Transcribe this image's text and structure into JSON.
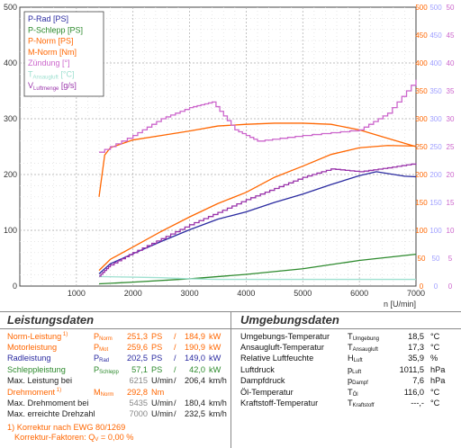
{
  "chart_data": {
    "type": "line",
    "x_axis": {
      "label": "n [U/min]",
      "ticks": [
        1000,
        2000,
        3000,
        4000,
        5000,
        6000,
        7000
      ],
      "range": [
        0,
        7000
      ]
    },
    "y_axis_left": {
      "ticks": [
        0,
        100,
        200,
        300,
        400,
        500
      ],
      "range": [
        0,
        500
      ]
    },
    "y_axis_right": [
      {
        "color": "#ff6600",
        "ticks": [
          0,
          50,
          100,
          150,
          200,
          250,
          300,
          350,
          400,
          450,
          500
        ]
      },
      {
        "color": "#a0a0ff",
        "ticks": [
          0,
          50,
          100,
          150,
          200,
          250,
          300,
          350,
          400,
          450,
          500
        ]
      },
      {
        "color": "#cc66cc",
        "ticks": [
          0,
          5,
          10,
          15,
          20,
          25,
          30,
          35,
          40,
          45,
          50
        ]
      }
    ],
    "grid": true,
    "legend_position": "top-left",
    "series": [
      {
        "name": "P-Rad [PS]",
        "legend_name": "P-Rad",
        "unit": "[PS]",
        "color": "#2a2aa0",
        "x": [
          1400,
          1600,
          2000,
          2500,
          3000,
          3500,
          4000,
          4500,
          5000,
          5500,
          6000,
          6300,
          6800,
          7000
        ],
        "y": [
          22,
          40,
          58,
          80,
          101,
          120,
          133,
          150,
          165,
          182,
          198,
          205,
          197,
          196
        ]
      },
      {
        "name": "P-Schlepp [PS]",
        "legend_name": "P-Schlepp",
        "unit": "[PS]",
        "color": "#2d8a2d",
        "x": [
          1400,
          2000,
          3000,
          4000,
          5000,
          6000,
          7000
        ],
        "y": [
          4,
          7,
          13,
          21,
          31,
          46,
          57
        ]
      },
      {
        "name": "P-Norm [PS]",
        "legend_name": "P-Norm",
        "unit": "[PS]",
        "color": "#ff6600",
        "x": [
          1400,
          1600,
          2000,
          2500,
          3000,
          3500,
          4000,
          4500,
          5000,
          5500,
          6000,
          6500,
          7000
        ],
        "y": [
          28,
          48,
          70,
          98,
          124,
          148,
          168,
          195,
          215,
          236,
          248,
          252,
          251
        ]
      },
      {
        "name": "M-Norm [Nm]",
        "legend_name": "M-Norm",
        "unit": "[Nm]",
        "color": "#ff6600",
        "x": [
          1400,
          1500,
          1600,
          2000,
          2500,
          3000,
          3500,
          4000,
          4500,
          5000,
          5500,
          6000,
          6500,
          7000
        ],
        "y": [
          160,
          235,
          248,
          262,
          270,
          278,
          287,
          290,
          292,
          292,
          290,
          280,
          265,
          250
        ]
      },
      {
        "name": "Zündung [°]",
        "legend_name": "Zündung",
        "unit": "[°]",
        "color": "#cc66cc",
        "x": [
          1400,
          2000,
          2500,
          3000,
          3400,
          3800,
          4200,
          5000,
          6000,
          6500,
          7000
        ],
        "y": [
          24,
          27,
          30,
          32,
          33,
          28,
          26,
          27,
          28,
          31,
          37
        ]
      },
      {
        "name": "TAnsaugluft [°C]",
        "legend_name": "T",
        "unit": "[°C]",
        "color": "#9fe0d0",
        "x": [
          1400,
          2000,
          2500,
          3000,
          3500,
          4000,
          4500,
          5000,
          5500,
          6000,
          6500,
          7000
        ],
        "y": [
          17,
          16,
          15,
          13,
          12,
          12,
          12,
          12,
          12,
          12,
          12,
          12
        ]
      },
      {
        "name": "VLuftmenge [g/s]",
        "legend_name": "V",
        "unit": "[g/s]",
        "color": "#9933aa",
        "x": [
          1400,
          1600,
          2000,
          2500,
          3000,
          3500,
          4000,
          4500,
          5000,
          5500,
          6000,
          6500,
          7000
        ],
        "y": [
          18,
          38,
          60,
          85,
          110,
          132,
          155,
          175,
          195,
          210,
          205,
          212,
          220
        ]
      }
    ],
    "legend_subscripts": {
      "t": "Ansaugluft",
      "v": "Luftmenge"
    }
  },
  "left_table": {
    "title": "Leistungsdaten",
    "rows": [
      {
        "label": "Norm-Leistung",
        "sup": "1)",
        "sym": "P",
        "sub": "Norm",
        "val": "251,3",
        "unit": "PS",
        "sep": "/",
        "val2": "184,9",
        "unit2": "kW",
        "color": "#ff6600"
      },
      {
        "label": "Motorleistung",
        "sup": "",
        "sym": "P",
        "sub": "Mot",
        "val": "259,6",
        "unit": "PS",
        "sep": "/",
        "val2": "190,9",
        "unit2": "kW",
        "color": "#ff6600"
      },
      {
        "label": "Radleistung",
        "sup": "",
        "sym": "P",
        "sub": "Rad",
        "val": "202,5",
        "unit": "PS",
        "sep": "/",
        "val2": "149,0",
        "unit2": "kW",
        "color": "#2a2aa0"
      },
      {
        "label": "Schleppleistung",
        "sup": "",
        "sym": "P",
        "sub": "Schlepp",
        "val": "57,1",
        "unit": "PS",
        "sep": "/",
        "val2": "42,0",
        "unit2": "kW",
        "color": "#2d8a2d"
      },
      {
        "label": "Max. Leistung bei",
        "sup": "",
        "sym": "",
        "sub": "",
        "val": "6215",
        "unit": "U/min",
        "sep": "/",
        "val2": "206,4",
        "unit2": "km/h",
        "color": "#222222",
        "valcolor": "#888888"
      }
    ],
    "rows2": [
      {
        "label": "Drehmoment",
        "sup": "1)",
        "sym": "M",
        "sub": "Norm",
        "val": "292,8",
        "unit": "Nm",
        "color": "#ff6600"
      },
      {
        "label": "Max. Drehmoment bei",
        "sup": "",
        "sym": "",
        "sub": "",
        "val": "5435",
        "unit": "U/min",
        "sep": "/",
        "val2": "180,4",
        "unit2": "km/h",
        "color": "#222222",
        "valcolor": "#888888"
      },
      {
        "label": "Max. erreichte Drehzahl",
        "sup": "",
        "sym": "",
        "sub": "",
        "val": "7000",
        "unit": "U/min",
        "sep": "/",
        "val2": "232,5",
        "unit2": "km/h",
        "color": "#222222",
        "valcolor": "#888888"
      }
    ],
    "footnote1": "1) Korrektur nach EWG 80/1269",
    "footnote2_a": "Korrektur-Faktoren: Q",
    "footnote2_sub": "V",
    "footnote2_b": " =   0,00 %"
  },
  "right_table": {
    "title": "Umgebungsdaten",
    "rows": [
      {
        "label": "Umgebungs-Temperatur",
        "sym": "T",
        "sub": "Umgebung",
        "val": "18,5",
        "unit": "°C"
      },
      {
        "label": "Ansaugluft-Temperatur",
        "sym": "T",
        "sub": "Ansaugluft",
        "val": "17,3",
        "unit": "°C"
      },
      {
        "label": "Relative Luftfeuchte",
        "sym": "H",
        "sub": "Luft",
        "val": "35,9",
        "unit": "%"
      },
      {
        "label": "Luftdruck",
        "sym": "p",
        "sub": "Luft",
        "val": "1011,5",
        "unit": "hPa"
      },
      {
        "label": "Dampfdruck",
        "sym": "p",
        "sub": "Dampf",
        "val": "7,6",
        "unit": "hPa"
      }
    ],
    "rows2": [
      {
        "label": "Öl-Temperatur",
        "sym": "T",
        "sub": "Öl",
        "val": "116,0",
        "unit": "°C"
      },
      {
        "label": "Kraftstoff-Temperatur",
        "sym": "T",
        "sub": "Kraftstoff",
        "val": "---,-",
        "unit": "°C"
      }
    ]
  }
}
